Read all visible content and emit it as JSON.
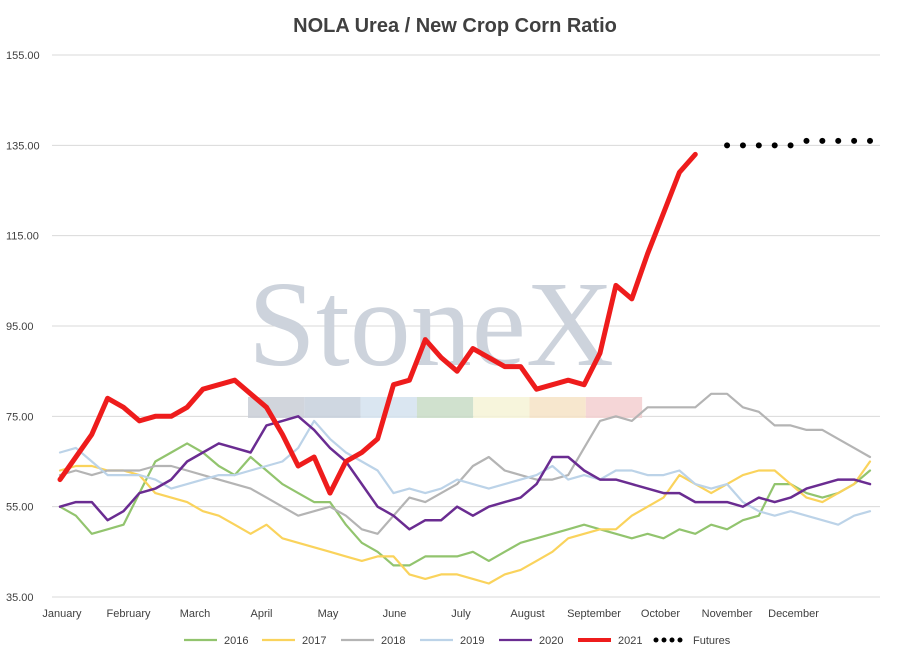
{
  "chart_data": {
    "type": "line",
    "title": "NOLA Urea / New Crop Corn Ratio",
    "xlabel": "",
    "ylabel": "",
    "ylim": [
      35,
      155
    ],
    "yticks": [
      "35.00",
      "55.00",
      "75.00",
      "95.00",
      "115.00",
      "135.00",
      "155.00"
    ],
    "month_labels": [
      "January",
      "February",
      "March",
      "April",
      "May",
      "June",
      "July",
      "August",
      "September",
      "October",
      "November",
      "December"
    ],
    "grid": "horizontal",
    "legend_position": "bottom",
    "watermark": "StoneX",
    "colors": {
      "2016": "#92c46e",
      "2017": "#fad35c",
      "2018": "#b4b4b4",
      "2019": "#bcd3e8",
      "2020": "#6a2c91",
      "2021": "#ee1c1c",
      "Futures": "#000000"
    },
    "x_weeks": [
      1,
      2,
      3,
      4,
      5,
      6,
      7,
      8,
      9,
      10,
      11,
      12,
      13,
      14,
      15,
      16,
      17,
      18,
      19,
      20,
      21,
      22,
      23,
      24,
      25,
      26,
      27,
      28,
      29,
      30,
      31,
      32,
      33,
      34,
      35,
      36,
      37,
      38,
      39,
      40,
      41,
      42,
      43,
      44,
      45,
      46,
      47,
      48,
      49,
      50,
      51,
      52
    ],
    "series": [
      {
        "name": "2016",
        "values": [
          55,
          53,
          49,
          50,
          51,
          58,
          65,
          67,
          69,
          67,
          64,
          62,
          66,
          63,
          60,
          58,
          56,
          56,
          51,
          47,
          45,
          42,
          42,
          44,
          44,
          44,
          45,
          43,
          45,
          47,
          48,
          49,
          50,
          51,
          50,
          49,
          48,
          49,
          48,
          50,
          49,
          51,
          50,
          52,
          53,
          60,
          60,
          58,
          57,
          58,
          60,
          63
        ]
      },
      {
        "name": "2017",
        "values": [
          63,
          64,
          64,
          63,
          63,
          62,
          58,
          57,
          56,
          54,
          53,
          51,
          49,
          51,
          48,
          47,
          46,
          45,
          44,
          43,
          44,
          44,
          40,
          39,
          40,
          40,
          39,
          38,
          40,
          41,
          43,
          45,
          48,
          49,
          50,
          50,
          53,
          55,
          57,
          62,
          60,
          58,
          60,
          62,
          63,
          63,
          60,
          57,
          56,
          58,
          60,
          65
        ]
      },
      {
        "name": "2018",
        "values": [
          62,
          63,
          62,
          63,
          63,
          63,
          64,
          64,
          63,
          62,
          61,
          60,
          59,
          57,
          55,
          53,
          54,
          55,
          53,
          50,
          49,
          53,
          57,
          56,
          58,
          60,
          64,
          66,
          63,
          62,
          61,
          61,
          62,
          68,
          74,
          75,
          74,
          77,
          77,
          77,
          77,
          80,
          80,
          77,
          76,
          73,
          73,
          72,
          72,
          70,
          68,
          66
        ]
      },
      {
        "name": "2019",
        "values": [
          67,
          68,
          65,
          62,
          62,
          62,
          61,
          59,
          60,
          61,
          62,
          62,
          63,
          64,
          65,
          68,
          74,
          70,
          67,
          65,
          63,
          58,
          59,
          58,
          59,
          61,
          60,
          59,
          60,
          61,
          62,
          64,
          61,
          62,
          61,
          63,
          63,
          62,
          62,
          63,
          60,
          59,
          60,
          56,
          54,
          53,
          54,
          53,
          52,
          51,
          53,
          54
        ]
      },
      {
        "name": "2020",
        "values": [
          55,
          56,
          56,
          52,
          54,
          58,
          59,
          61,
          65,
          67,
          69,
          68,
          67,
          73,
          74,
          75,
          72,
          68,
          65,
          60,
          55,
          53,
          50,
          52,
          52,
          55,
          53,
          55,
          56,
          57,
          60,
          66,
          66,
          63,
          61,
          61,
          60,
          59,
          58,
          58,
          56,
          56,
          56,
          55,
          57,
          56,
          57,
          59,
          60,
          61,
          61,
          60
        ]
      },
      {
        "name": "2021",
        "values": [
          61,
          66,
          71,
          79,
          77,
          74,
          75,
          75,
          77,
          81,
          82,
          83,
          80,
          77,
          71,
          64,
          66,
          58,
          65,
          67,
          70,
          82,
          83,
          92,
          88,
          85,
          90,
          88,
          86,
          86,
          81,
          82,
          83,
          82,
          89,
          104,
          101,
          111,
          120,
          129,
          133
        ]
      },
      {
        "name": "Futures",
        "x_weeks": [
          43,
          44,
          45,
          46,
          47,
          48,
          49,
          50,
          51,
          52
        ],
        "values": [
          135,
          135,
          135,
          135,
          135,
          136,
          136,
          136,
          136,
          136
        ]
      }
    ]
  }
}
